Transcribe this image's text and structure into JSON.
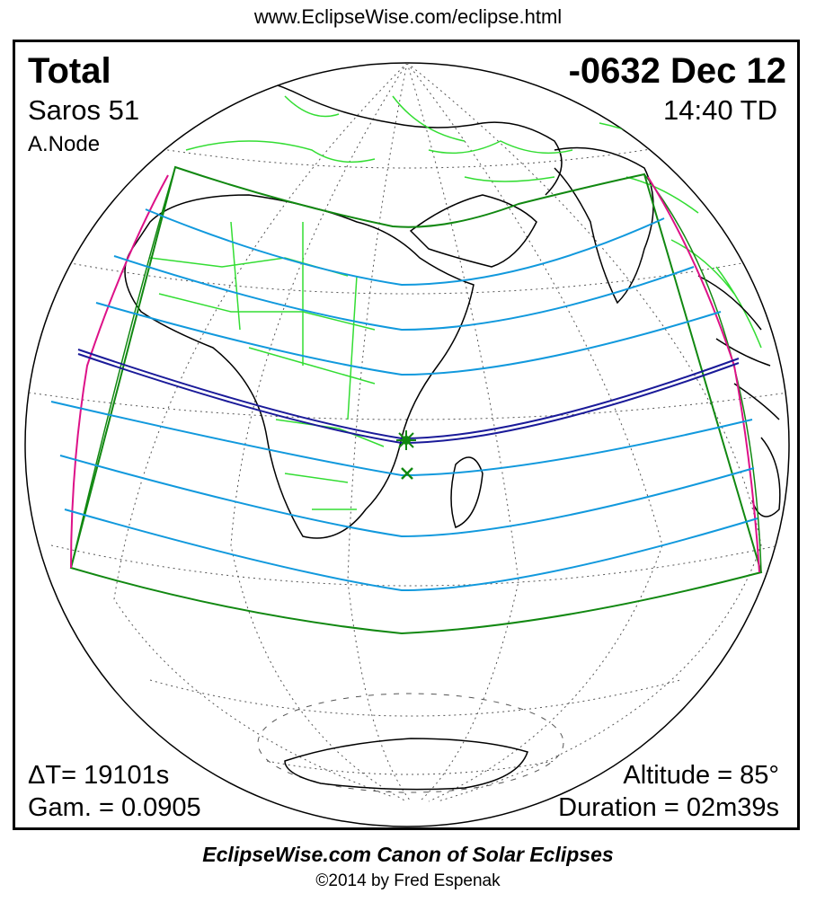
{
  "header": {
    "url": "www.EclipseWise.com/eclipse.html"
  },
  "eclipse": {
    "type": "Total",
    "date": "-0632 Dec 12",
    "saros": "Saros  51",
    "time": "14:40 TD",
    "node": "A.Node",
    "delta_t": "ΔT=  19101s",
    "gamma": "Gam. = 0.0905",
    "altitude": "Altitude = 85°",
    "duration": "Duration = 02m39s"
  },
  "footer": {
    "title": "EclipseWise.com Canon of Solar Eclipses",
    "copyright": "©2014 by Fred Espenak"
  },
  "colors": {
    "land": "#33dd33",
    "coast": "#000000",
    "grid": "#555555",
    "penumbra_limit": "#118811",
    "penumbra_lines": "#1199dd",
    "central_path": "#1a1a99",
    "rise_set": "#dd1188",
    "max_eclipse_marker": "#118811"
  },
  "markers": {
    "greatest_eclipse": "star-marker",
    "sub_solar_point": "x-marker"
  }
}
